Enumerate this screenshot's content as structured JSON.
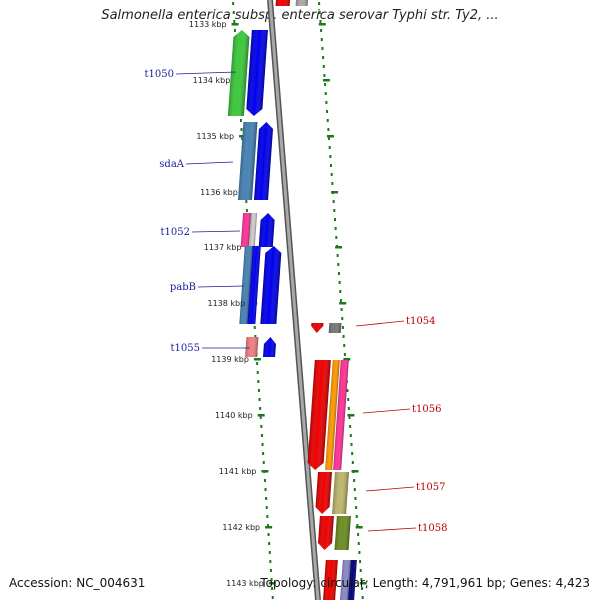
{
  "title": "Salmonella enterica subsp. enterica serovar Typhi str. Ty2, ...",
  "footer": {
    "accession": "Accession: NC_004631",
    "topology": "Topology: circular; Length: 4,791,961 bp; Genes: 4,423"
  },
  "colors": {
    "backbone": "#8c8c8c",
    "scale_ticks": "#1a7a1a",
    "left_label": "#1a1aa0",
    "right_label": "#c00000"
  },
  "scale": {
    "labels": [
      "1133 kbp",
      "1134 kbp",
      "1135 kbp",
      "1136 kbp",
      "1137 kbp",
      "1138 kbp",
      "1139 kbp",
      "1140 kbp",
      "1141 kbp",
      "1142 kbp",
      "1143 kbp"
    ]
  },
  "genes_left": [
    {
      "label": "t1050",
      "color": "#1a1aa0"
    },
    {
      "label": "sdaA",
      "color": "#1a1aa0"
    },
    {
      "label": "t1052",
      "color": "#1a1aa0"
    },
    {
      "label": "pabB",
      "color": "#1a1aa0"
    },
    {
      "label": "t1055",
      "color": "#1a1aa0"
    }
  ],
  "genes_right": [
    {
      "label": "t1054",
      "color": "#c00000"
    },
    {
      "label": "t1056",
      "color": "#c00000"
    },
    {
      "label": "t1057",
      "color": "#c00000"
    },
    {
      "label": "t1058",
      "color": "#c00000"
    }
  ],
  "bar_colors": {
    "green": "#3cc83c",
    "blue": "#0000ee",
    "steel": "#4682b4",
    "pink": "#ff3399",
    "lightpink": "#f08080",
    "red": "#ee0000",
    "orange": "#ff9900",
    "khaki": "#bdb76b",
    "olive": "#6b8e23",
    "grey": "#777777",
    "navy": "#000080"
  }
}
